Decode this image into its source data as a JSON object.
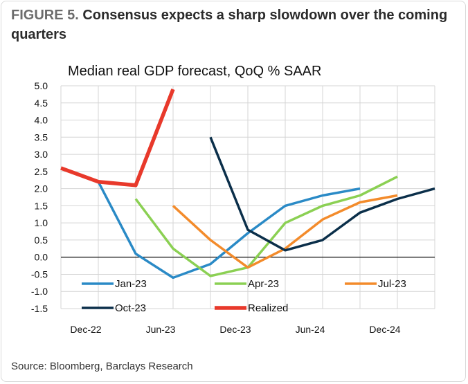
{
  "figure": {
    "label": "FIGURE 5.",
    "title": "Consensus expects a sharp slowdown over the coming quarters",
    "source": "Source: Bloomberg, Barclays Research"
  },
  "chart_data": {
    "type": "line",
    "title": "Median real GDP forecast, QoQ % SAAR",
    "xlabel": "",
    "ylabel": "",
    "ylim": [
      -1.5,
      5.0
    ],
    "y_ticks": [
      "5.0",
      "4.5",
      "4.0",
      "3.5",
      "3.0",
      "2.5",
      "2.0",
      "1.5",
      "1.0",
      "0.5",
      "0.0",
      "-0.5",
      "-1.0",
      "-1.5"
    ],
    "x_ticks": [
      "Dec-22",
      "Jun-23",
      "Dec-23",
      "Jun-24",
      "Dec-24"
    ],
    "grid": true,
    "legend_position": "bottom-inside",
    "series": [
      {
        "name": "Jan-23",
        "color": "#2a8ac6",
        "x": [
          "2023-01",
          "2023-04",
          "2023-07",
          "2023-10",
          "2024-01",
          "2024-04",
          "2024-07",
          "2024-10"
        ],
        "values": [
          2.2,
          0.1,
          -0.6,
          -0.2,
          0.7,
          1.5,
          1.8,
          2.0
        ]
      },
      {
        "name": "Apr-23",
        "color": "#8bd053",
        "x": [
          "2023-04",
          "2023-07",
          "2023-10",
          "2024-01",
          "2024-04",
          "2024-07",
          "2024-10",
          "2025-01"
        ],
        "values": [
          1.7,
          0.25,
          -0.55,
          -0.3,
          1.0,
          1.5,
          1.8,
          2.35
        ]
      },
      {
        "name": "Jul-23",
        "color": "#f38b2b",
        "x": [
          "2023-07",
          "2023-10",
          "2024-01",
          "2024-04",
          "2024-07",
          "2024-10",
          "2025-01"
        ],
        "values": [
          1.5,
          0.5,
          -0.3,
          0.25,
          1.1,
          1.6,
          1.8
        ]
      },
      {
        "name": "Oct-23",
        "color": "#0b2f4a",
        "x": [
          "2023-10",
          "2024-01",
          "2024-04",
          "2024-07",
          "2024-10",
          "2025-01",
          "2025-04"
        ],
        "values": [
          3.5,
          0.8,
          0.2,
          0.5,
          1.3,
          1.7,
          2.0
        ]
      },
      {
        "name": "Realized",
        "color": "#e8392b",
        "x": [
          "2022-10",
          "2023-01",
          "2023-04",
          "2023-07"
        ],
        "values": [
          2.6,
          2.2,
          2.1,
          4.9
        ]
      }
    ]
  }
}
